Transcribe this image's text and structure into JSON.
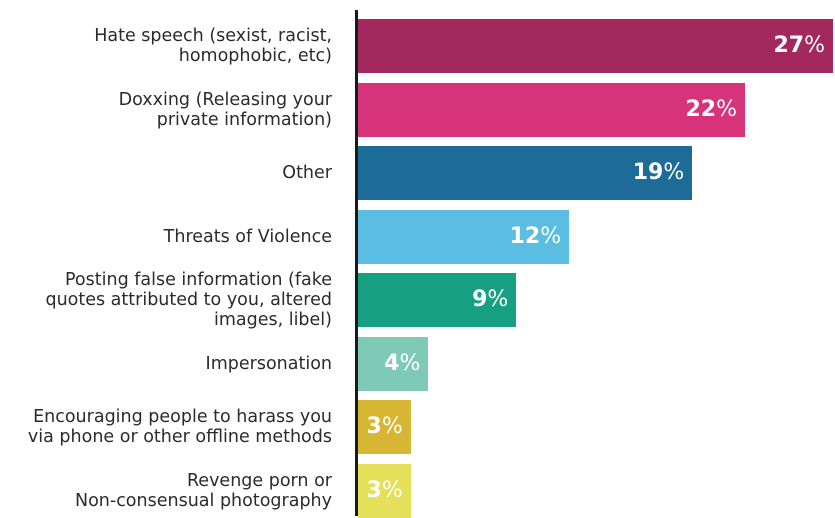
{
  "chart_data": {
    "type": "bar",
    "orientation": "horizontal",
    "categories": [
      "Hate speech (sexist, racist,\nhomophobic, etc)",
      "Doxxing (Releasing your\nprivate information)",
      "Other",
      "Threats of Violence",
      "Posting false information (fake\nquotes attributed to you, altered\nimages, libel)",
      "Impersonation",
      "Encouraging people to harass you\nvia phone or other offline methods",
      "Revenge porn or\nNon-consensual photography"
    ],
    "values": [
      27,
      22,
      19,
      12,
      9,
      4,
      3,
      3
    ],
    "value_labels": [
      "27%",
      "22%",
      "19%",
      "12%",
      "9%",
      "4%",
      "3%",
      "3%"
    ],
    "unit": "%",
    "colors": [
      "#a3285d",
      "#d6337a",
      "#1d6b97",
      "#5bbde2",
      "#16a081",
      "#7ecab7",
      "#d7b634",
      "#e4e05a"
    ],
    "xlim": [
      0,
      27
    ],
    "grid": false,
    "legend": "none"
  }
}
